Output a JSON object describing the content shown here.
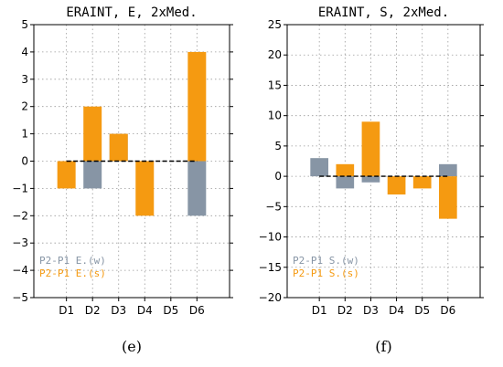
{
  "chart_data": [
    {
      "type": "bar",
      "title": "ERAINT, E, 2xMed.",
      "panel_label": "(e)",
      "categories": [
        "D1",
        "D2",
        "D3",
        "D4",
        "D5",
        "D6"
      ],
      "ylim": [
        -5,
        5
      ],
      "yticks": [
        -5,
        -4,
        -3,
        -2,
        -1,
        0,
        1,
        2,
        3,
        4,
        5
      ],
      "grid": true,
      "legend_position": "bottom-left",
      "series": [
        {
          "name": "P2-P1 E.(w)",
          "color": "#8795a5",
          "values": [
            0,
            -1,
            1,
            0,
            0,
            -2
          ]
        },
        {
          "name": "P2-P1 E.(s)",
          "color": "#f59a11",
          "values": [
            -1,
            2,
            1,
            -2,
            0,
            4
          ]
        }
      ]
    },
    {
      "type": "bar",
      "title": "ERAINT, S, 2xMed.",
      "panel_label": "(f)",
      "categories": [
        "D1",
        "D2",
        "D3",
        "D4",
        "D5",
        "D6"
      ],
      "ylim": [
        -20,
        25
      ],
      "yticks": [
        -20,
        -15,
        -10,
        -5,
        0,
        5,
        10,
        15,
        20,
        25
      ],
      "grid": true,
      "legend_position": "bottom-left",
      "series": [
        {
          "name": "P2-P1 S.(w)",
          "color": "#8795a5",
          "values": [
            3,
            -2,
            -1,
            0,
            0,
            2
          ]
        },
        {
          "name": "P2-P1 S.(s)",
          "color": "#f59a11",
          "values": [
            0,
            2,
            9,
            -3,
            -2,
            -7
          ]
        }
      ]
    }
  ]
}
